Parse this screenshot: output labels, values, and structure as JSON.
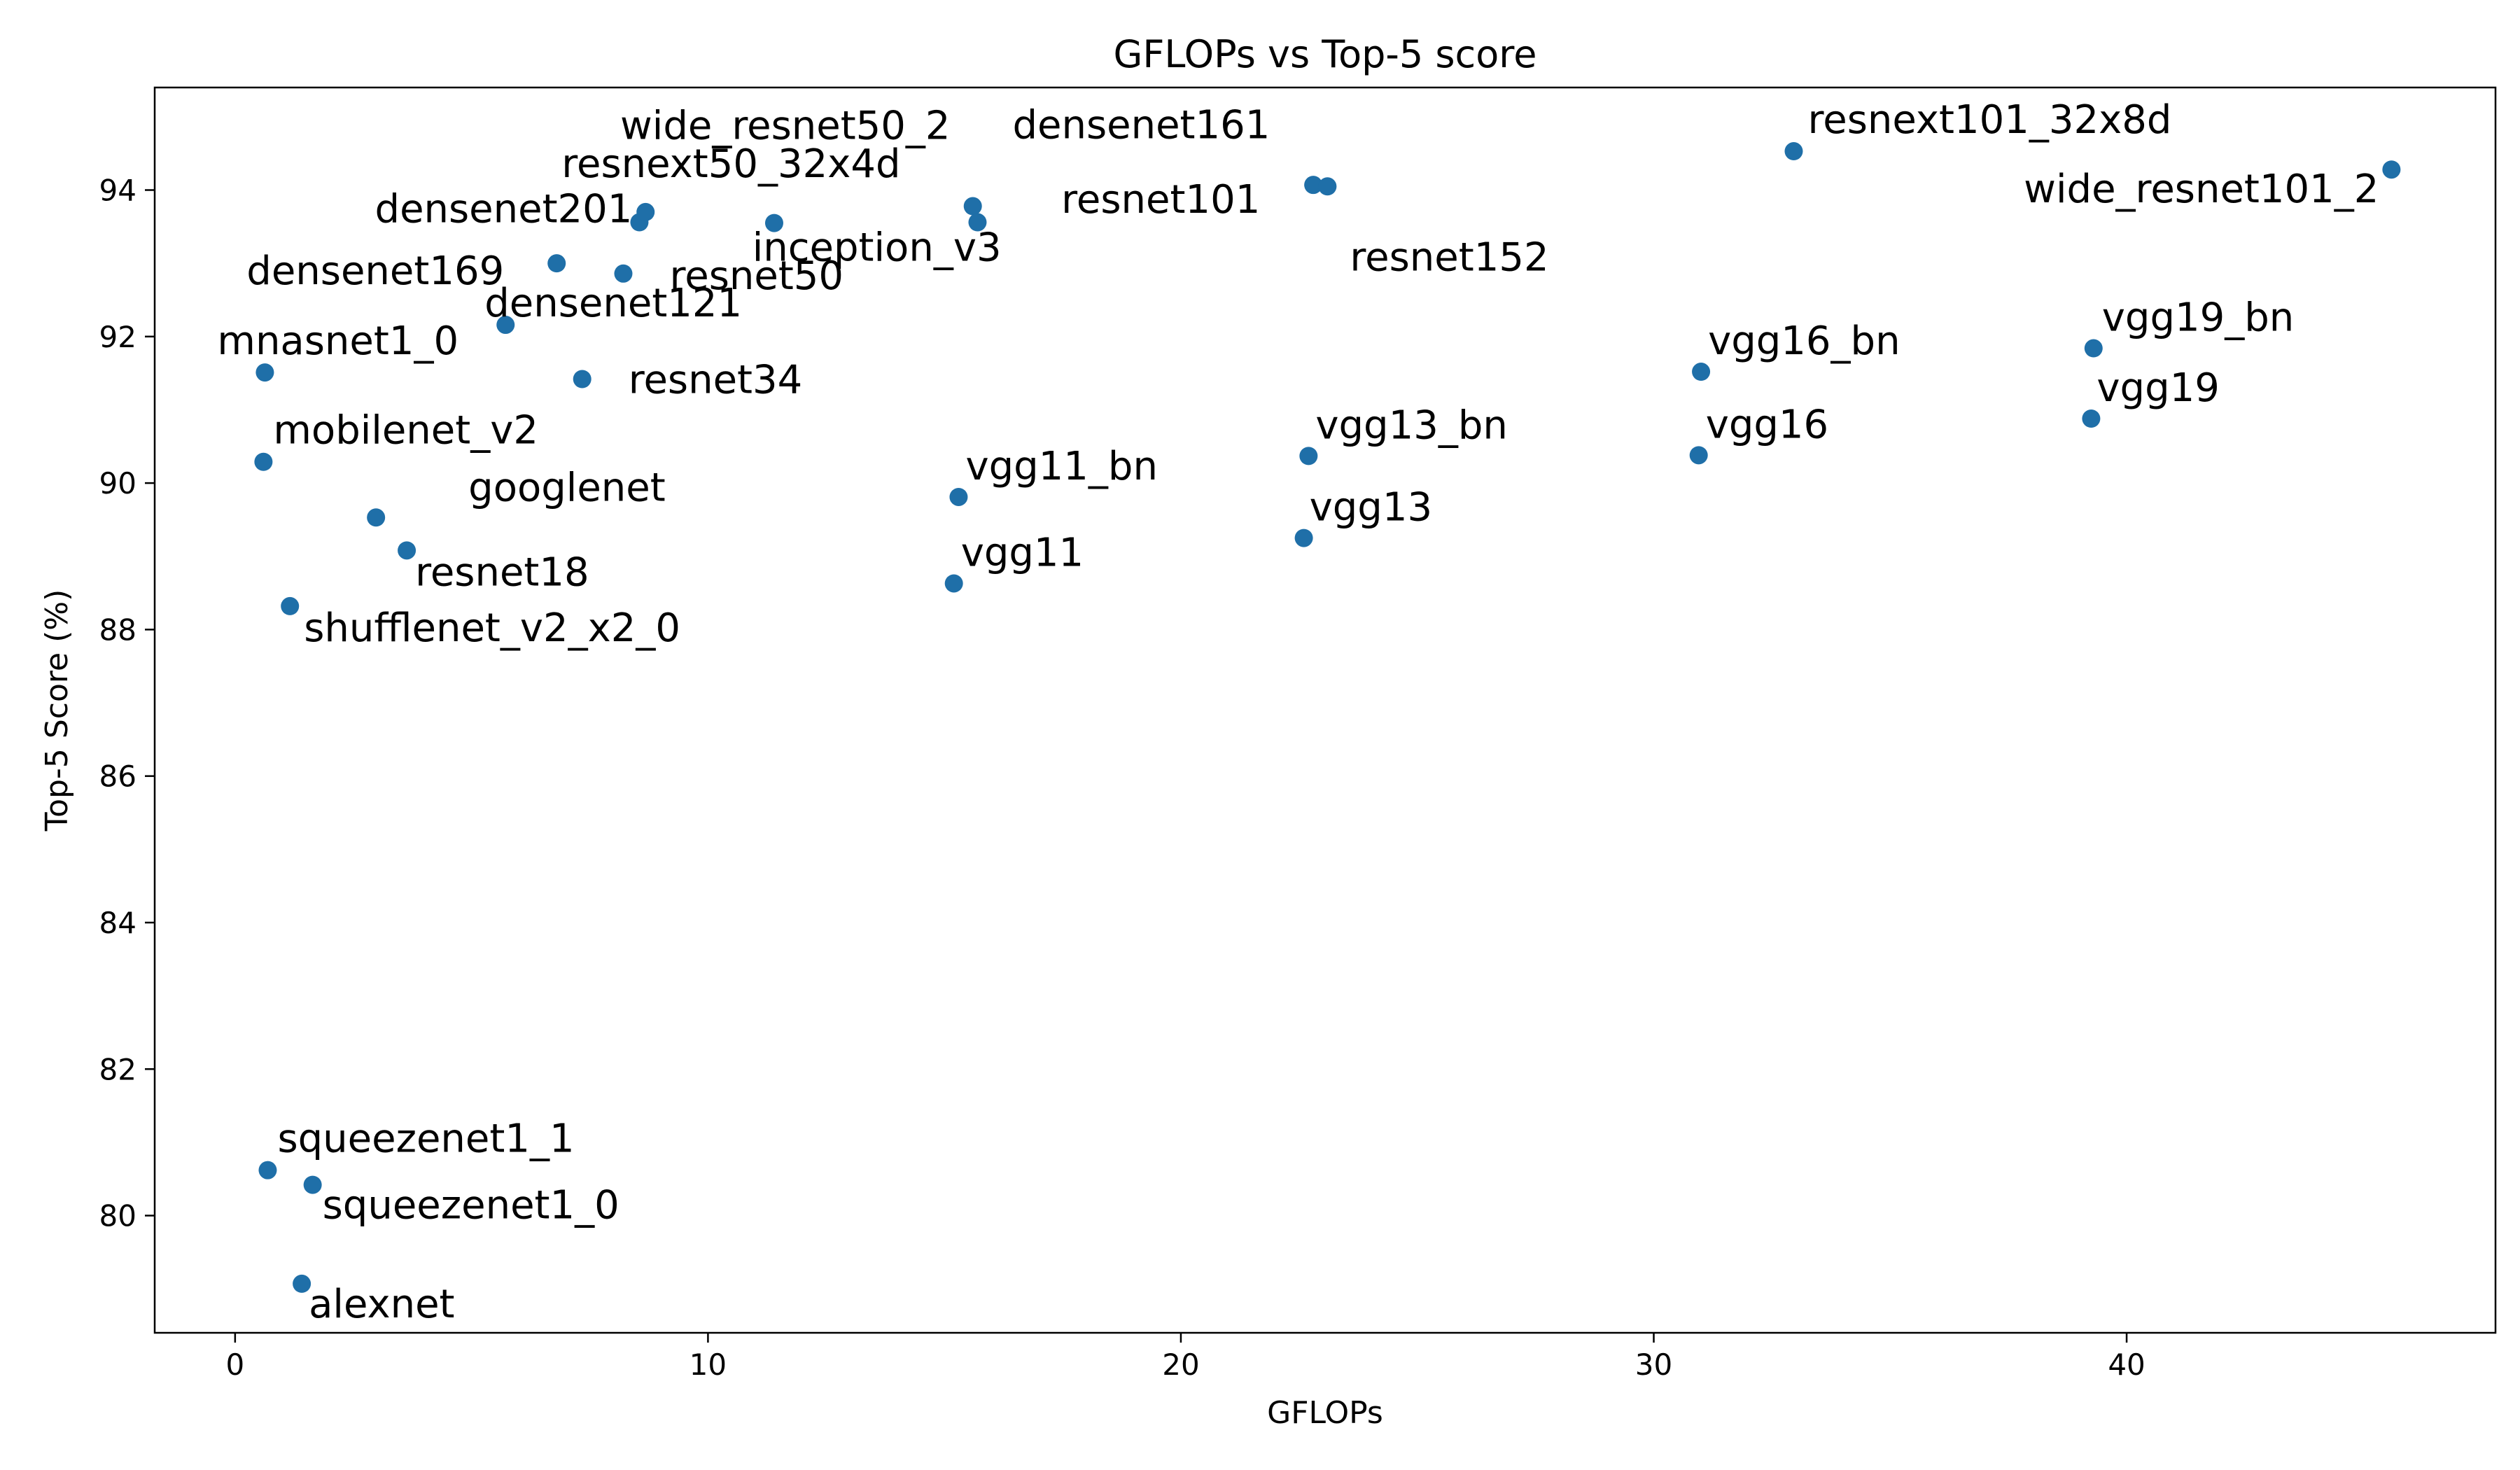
{
  "chart_data": {
    "type": "scatter",
    "title": "GFLOPs vs Top-5 score",
    "xlabel": "GFLOPs",
    "ylabel": "Top-5 Score (%)",
    "xlim": [
      -1.7,
      47.8
    ],
    "ylim": [
      78.4,
      95.4
    ],
    "xticks": [
      0,
      10,
      20,
      30,
      40
    ],
    "yticks": [
      80,
      82,
      84,
      86,
      88,
      90,
      92,
      94
    ],
    "xtick_labels": [
      "0",
      "10",
      "20",
      "30",
      "40"
    ],
    "ytick_labels": [
      "80",
      "82",
      "84",
      "86",
      "88",
      "90",
      "92",
      "94"
    ],
    "grid": false,
    "legend": "none",
    "marker_color": "#1f6fa8",
    "points": [
      {
        "name": "alexnet",
        "x": 1.41,
        "y": 79.07,
        "label_anchor": "start"
      },
      {
        "name": "squeezenet1_0",
        "x": 1.64,
        "y": 80.42,
        "label_anchor": "start"
      },
      {
        "name": "squeezenet1_1",
        "x": 0.69,
        "y": 80.62,
        "label_anchor": "start"
      },
      {
        "name": "shufflenet_v2_x2_0",
        "x": 1.16,
        "y": 88.32,
        "label_anchor": "start"
      },
      {
        "name": "resnet18",
        "x": 3.63,
        "y": 89.08,
        "label_anchor": "start"
      },
      {
        "name": "googlenet",
        "x": 2.98,
        "y": 89.53,
        "label_anchor": "start"
      },
      {
        "name": "mobilenet_v2",
        "x": 0.6,
        "y": 90.29,
        "label_anchor": "start"
      },
      {
        "name": "mnasnet1_0",
        "x": 0.63,
        "y": 91.51,
        "label_anchor": "start"
      },
      {
        "name": "resnet34",
        "x": 7.34,
        "y": 91.42,
        "label_anchor": "start"
      },
      {
        "name": "densenet121",
        "x": 5.72,
        "y": 92.16,
        "label_anchor": "start"
      },
      {
        "name": "densenet169",
        "x": 6.8,
        "y": 93.0,
        "label_anchor": "end"
      },
      {
        "name": "resnet50",
        "x": 8.21,
        "y": 92.86,
        "label_anchor": "start"
      },
      {
        "name": "densenet201",
        "x": 8.55,
        "y": 93.56,
        "label_anchor": "end"
      },
      {
        "name": "resnext50_32x4d",
        "x": 8.68,
        "y": 93.7,
        "label_anchor": "start"
      },
      {
        "name": "wide_resnet50_2",
        "x": 11.4,
        "y": 93.55,
        "label_anchor": "start"
      },
      {
        "name": "inception_v3",
        "x": 15.6,
        "y": 93.78,
        "label_anchor": "start"
      },
      {
        "name": "densenet161",
        "x": 15.7,
        "y": 93.56,
        "label_anchor": "start"
      },
      {
        "name": "resnet101",
        "x": 22.8,
        "y": 94.07,
        "label_anchor": "start"
      },
      {
        "name": "resnet152",
        "x": 23.1,
        "y": 94.05,
        "label_anchor": "start"
      },
      {
        "name": "resnext101_32x8d",
        "x": 32.96,
        "y": 94.53,
        "label_anchor": "start"
      },
      {
        "name": "wide_resnet101_2",
        "x": 45.6,
        "y": 94.28,
        "label_anchor": "end"
      },
      {
        "name": "vgg11_bn",
        "x": 15.3,
        "y": 89.81,
        "label_anchor": "start"
      },
      {
        "name": "vgg11",
        "x": 15.2,
        "y": 88.63,
        "label_anchor": "start"
      },
      {
        "name": "vgg13_bn",
        "x": 22.7,
        "y": 90.37,
        "label_anchor": "start"
      },
      {
        "name": "vgg13",
        "x": 22.6,
        "y": 89.25,
        "label_anchor": "start"
      },
      {
        "name": "vgg16_bn",
        "x": 31.0,
        "y": 91.52,
        "label_anchor": "start"
      },
      {
        "name": "vgg16",
        "x": 30.95,
        "y": 90.38,
        "label_anchor": "start"
      },
      {
        "name": "vgg19_bn",
        "x": 39.3,
        "y": 91.84,
        "label_anchor": "start"
      },
      {
        "name": "vgg19",
        "x": 39.25,
        "y": 90.88,
        "label_anchor": "start"
      }
    ]
  }
}
